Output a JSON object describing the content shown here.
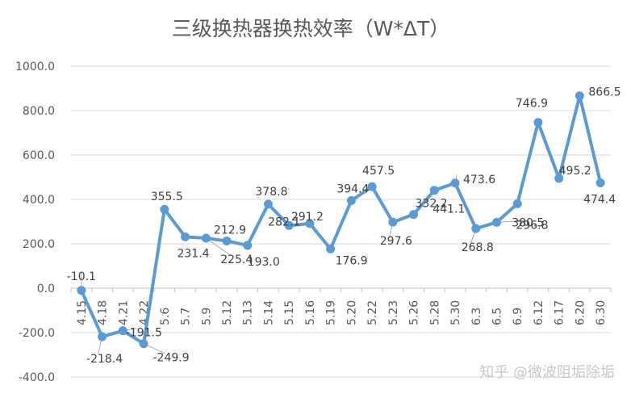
{
  "chart_data": {
    "type": "line",
    "title": "三级换热器换热效率（W*ΔT）",
    "xlabel": "",
    "ylabel": "",
    "categories": [
      "4.15",
      "4.18",
      "4.21",
      "4.22",
      "5.6",
      "5.7",
      "5.9",
      "5.12",
      "5.13",
      "5.14",
      "5.15",
      "5.16",
      "5.19",
      "5.20",
      "5.22",
      "5.23",
      "5.26",
      "5.28",
      "5.30",
      "6.3",
      "6.5",
      "6.9",
      "6.12",
      "6.17",
      "6.20",
      "6.30"
    ],
    "series": [
      {
        "values": [
          -10.1,
          -218.4,
          -191.5,
          -249.9,
          355.5,
          231.4,
          225.4,
          212.9,
          193.0,
          378.8,
          282.1,
          291.2,
          176.9,
          394.4,
          457.5,
          297.6,
          332.2,
          441.1,
          473.6,
          268.8,
          296.8,
          380.5,
          746.9,
          495.2,
          866.5,
          474.4
        ]
      }
    ],
    "data_labels": [
      "-10.1",
      "-218.4",
      "-191.5",
      "-249.9",
      "355.5",
      "231.4",
      "225.4",
      "212.9",
      "193.0",
      "378.8",
      "282.1",
      "291.2",
      "176.9",
      "394.4",
      "457.5",
      "297.6",
      "332.2",
      "441.1",
      "473.6",
      "268.8",
      "296.8",
      "380.5",
      "746.9",
      "495.2",
      "866.5",
      "474.4"
    ],
    "y_tick_labels": [
      "1000.0",
      "800.0",
      "600.0",
      "400.0",
      "200.0",
      "0.0",
      "-200.0",
      "-400.0"
    ],
    "ylim": [
      -400,
      1000
    ],
    "grid": true,
    "legend": "none",
    "colors": {
      "line": "#5b9bd5",
      "grid": "#d9d9d9",
      "axis": "#bfbfbf",
      "text": "#595959",
      "leader": "#a6a6a6"
    }
  },
  "watermark": "知乎 @微波阻垢除垢"
}
